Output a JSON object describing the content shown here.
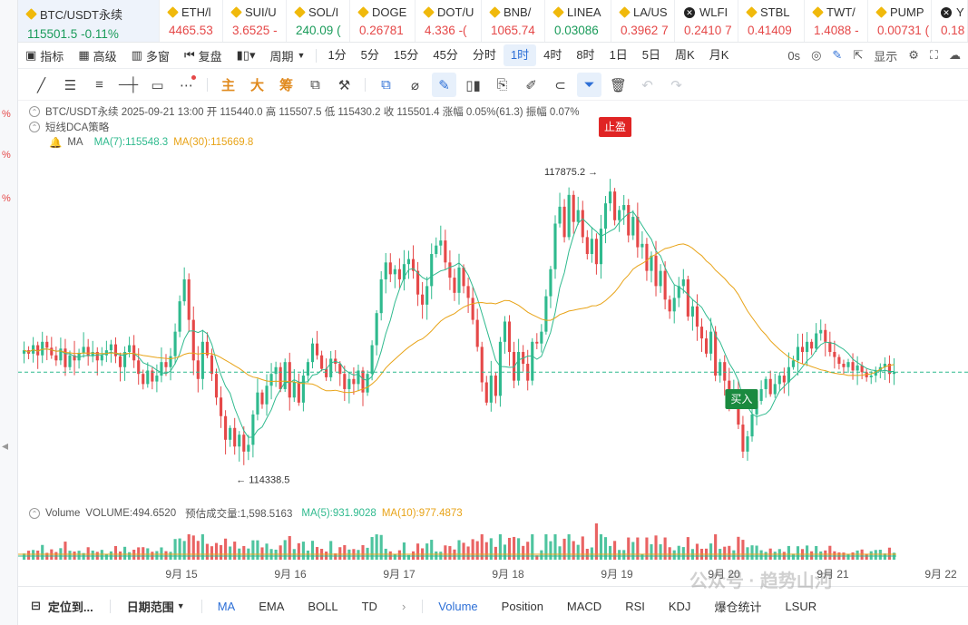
{
  "tickers": [
    {
      "symbol": "BTC/USDT永续",
      "price": "115501.5",
      "change": "-0.11%",
      "dir": "up",
      "active": true,
      "icon": "btc-diamond-icon",
      "w": 156
    },
    {
      "symbol": "ETH/l",
      "price": "4465.53",
      "change": "",
      "dir": "dn",
      "icon": "eth-diamond-icon",
      "w": 70
    },
    {
      "symbol": "SUI/U",
      "price": "3.6525",
      "change": "-",
      "dir": "dn",
      "icon": "sui-diamond-icon",
      "w": 70
    },
    {
      "symbol": "SOL/I",
      "price": "240.09",
      "change": "(",
      "dir": "up",
      "icon": "sol-diamond-icon",
      "w": 70
    },
    {
      "symbol": "DOGE",
      "price": "0.26781",
      "change": "",
      "dir": "dn",
      "icon": "doge-diamond-icon",
      "w": 72
    },
    {
      "symbol": "DOT/U",
      "price": "4.336",
      "change": "-(",
      "dir": "dn",
      "icon": "dot-diamond-icon",
      "w": 73
    },
    {
      "symbol": "BNB/",
      "price": "1065.74",
      "change": "",
      "dir": "dn",
      "icon": "bnb-diamond-icon",
      "w": 70
    },
    {
      "symbol": "LINEA",
      "price": "0.03086",
      "change": "",
      "dir": "up",
      "icon": "linea-diamond-icon",
      "w": 73
    },
    {
      "symbol": "LA/US",
      "price": "0.3962",
      "change": "7",
      "dir": "dn",
      "icon": "la-diamond-icon",
      "w": 70
    },
    {
      "symbol": "WLFI",
      "price": "0.2410",
      "change": "7",
      "dir": "dn",
      "icon": "wlfi-coin-icon",
      "w": 70
    },
    {
      "symbol": "STBL",
      "price": "0.41409",
      "change": "",
      "dir": "dn",
      "icon": "stbl-diamond-icon",
      "w": 73
    },
    {
      "symbol": "TWT/",
      "price": "1.4088",
      "change": "-",
      "dir": "dn",
      "icon": "twt-diamond-icon",
      "w": 70
    },
    {
      "symbol": "PUMP",
      "price": "0.00731",
      "change": "(",
      "dir": "dn",
      "icon": "pump-diamond-icon",
      "w": 70
    },
    {
      "symbol": "Y",
      "price": "0.18",
      "change": "",
      "dir": "dn",
      "icon": "y-coin-icon",
      "w": 40
    }
  ],
  "toolbar1": {
    "indicators": "指标",
    "pro": "高级",
    "multi": "多窗",
    "replay": "复盘",
    "period": "周期",
    "intervals": [
      "1分",
      "5分",
      "15分",
      "45分",
      "分时",
      "1时",
      "4时",
      "8时",
      "1日",
      "5日",
      "周K",
      "月K"
    ],
    "selected_interval": "1时",
    "countdown": "0s",
    "display": "显示"
  },
  "toolbar2": {
    "tools_left": [
      "line-tool-icon",
      "parallel-channel-icon",
      "fib-icon",
      "horizontal-line-icon",
      "rectangle-icon",
      "more-icon"
    ],
    "cn_tools": [
      "主",
      "大",
      "筹"
    ]
  },
  "legend": {
    "ohlc_line": "BTC/USDT永续  2025-09-21 13:00  开 115440.0  高 115507.5  低 115430.2  收 115501.4  涨幅 0.05%(61.3)  振幅 0.07%",
    "strategy": "短线DCA策略",
    "ma_label": "MA",
    "ma7": "MA(7):115548.3",
    "ma30": "MA(30):115669.8",
    "volume_label": "Volume",
    "volume_value": "VOLUME:494.6520",
    "est_volume": "预估成交量:1,598.5163",
    "vma5": "MA(5):931.9028",
    "vma10": "MA(10):977.4873"
  },
  "annotations": {
    "high_label": "117875.2 →",
    "low_label": "← 114338.5",
    "take_profit": "止盈",
    "buy": "买入"
  },
  "chart_data": {
    "type": "candlestick",
    "price_range": [
      114150,
      118200
    ],
    "x_labels": [
      "9月 15",
      "9月 16",
      "9月 17",
      "9月 18",
      "9月 19",
      "9月 20",
      "9月 21",
      "9月 22"
    ],
    "current_price_line": 115501,
    "high": 117875.2,
    "low": 114338.5,
    "closes": [
      115760,
      115720,
      115820,
      115700,
      115860,
      115790,
      115700,
      115640,
      115780,
      115560,
      115700,
      115640,
      115730,
      115800,
      115690,
      115740,
      115640,
      115700,
      115760,
      115830,
      115690,
      115560,
      115740,
      115820,
      115640,
      115480,
      115360,
      115520,
      115390,
      115460,
      115620,
      115560,
      115690,
      115980,
      116340,
      116600,
      116120,
      115640,
      115420,
      115860,
      115700,
      115480,
      115200,
      114980,
      114700,
      114840,
      114620,
      114760,
      114560,
      114640,
      115000,
      115260,
      115120,
      115340,
      115480,
      115560,
      115300,
      115620,
      115200,
      115380,
      115140,
      115460,
      115620,
      115840,
      115700,
      115540,
      115440,
      115660,
      115600,
      115480,
      115300,
      115420,
      115360,
      115520,
      115260,
      115480,
      115820,
      116200,
      116600,
      116800,
      116660,
      116720,
      116600,
      116780,
      116840,
      116700,
      116420,
      116300,
      116520,
      116900,
      117000,
      117060,
      116800,
      116620,
      116440,
      116740,
      116520,
      116380,
      116120,
      115800,
      115380,
      115140,
      115460,
      115220,
      115860,
      116100,
      115740,
      115400,
      115740,
      115600,
      115400,
      115860,
      115840,
      115980,
      116400,
      116720,
      117260,
      117460,
      117100,
      117600,
      117280,
      117420,
      117100,
      116900,
      117080,
      116780,
      117200,
      117500,
      117640,
      117300,
      117420,
      117480,
      117120,
      117340,
      116980,
      117020,
      116700,
      116880,
      116520,
      116700,
      116360,
      116220,
      116380,
      116520,
      116600,
      116160,
      116280,
      116040,
      115900,
      115720,
      115980,
      115460,
      115620,
      115400,
      115160,
      115300,
      114880,
      114560,
      114740,
      115000,
      115160,
      115300,
      115420,
      115240,
      115360,
      115460,
      115380,
      115560,
      115640,
      115800,
      115740,
      115860,
      115780,
      115960,
      116000,
      115860,
      115740,
      115680,
      115600,
      115560,
      115620,
      115520,
      115580,
      115500,
      115440,
      115460,
      115520,
      115560,
      115600,
      115480,
      115501
    ],
    "ma7_color": "#2fba8e",
    "ma30_color": "#e8a317",
    "up_color": "#2fba8e",
    "down_color": "#e54848"
  },
  "bottom_bar": {
    "locate": "定位到...",
    "date_range": "日期范围",
    "tabs": [
      "MA",
      "EMA",
      "BOLL",
      "TD",
      "Volume",
      "Position",
      "MACD",
      "RSI",
      "KDJ",
      "爆仓统计",
      "LSUR"
    ],
    "active": [
      "MA",
      "Volume"
    ]
  },
  "watermark": "公众号 · 趋势山河"
}
